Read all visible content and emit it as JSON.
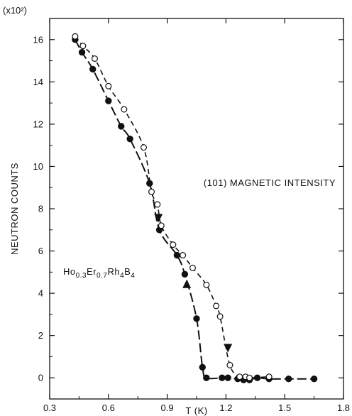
{
  "chart_data": {
    "type": "scatter",
    "xlabel": "T (K)",
    "ylabel": "NEUTRON COUNTS",
    "y_multiplier_label": "(x10²)",
    "xlim": [
      0.3,
      1.8
    ],
    "ylim": [
      -1,
      17
    ],
    "x_ticks": [
      0.3,
      0.6,
      0.9,
      1.2,
      1.5,
      1.8
    ],
    "x_tick_labels": [
      "0.3",
      "0.6",
      "0.9",
      "1.2",
      "1.5",
      "1.8"
    ],
    "y_ticks": [
      0,
      2,
      4,
      6,
      8,
      10,
      12,
      14,
      16
    ],
    "y_tick_labels": [
      "0",
      "2",
      "4",
      "6",
      "8",
      "10",
      "12",
      "14",
      "16"
    ],
    "annotation": "(101) MAGNETIC INTENSITY",
    "compound": {
      "a": "Ho",
      "b": "0.3",
      "c": "Er",
      "d": "0.7",
      "e": "Rh",
      "f": "4",
      "g": "B",
      "h": "4"
    },
    "series": [
      {
        "marker": "filled",
        "line": "long-dash",
        "points": [
          [
            0.43,
            16.0
          ],
          [
            0.465,
            15.4
          ],
          [
            0.52,
            14.6
          ],
          [
            0.6,
            13.1
          ],
          [
            0.665,
            11.9
          ],
          [
            0.71,
            11.3
          ],
          [
            0.81,
            9.2
          ],
          [
            0.86,
            7.0
          ],
          [
            0.95,
            5.8
          ],
          [
            0.99,
            4.9
          ],
          [
            1.05,
            2.8
          ],
          [
            1.08,
            0.5
          ],
          [
            1.1,
            0.0
          ],
          [
            1.18,
            0.0
          ],
          [
            1.21,
            0.0
          ],
          [
            1.26,
            -0.05
          ],
          [
            1.29,
            -0.1
          ],
          [
            1.32,
            -0.1
          ],
          [
            1.36,
            0.0
          ],
          [
            1.42,
            -0.05
          ],
          [
            1.52,
            -0.05
          ],
          [
            1.65,
            -0.05
          ]
        ]
      },
      {
        "marker": "open",
        "line": "short-dash",
        "points": [
          [
            0.43,
            16.15
          ],
          [
            0.47,
            15.7
          ],
          [
            0.53,
            15.1
          ],
          [
            0.6,
            13.8
          ],
          [
            0.68,
            12.7
          ],
          [
            0.78,
            10.9
          ],
          [
            0.82,
            8.8
          ],
          [
            0.85,
            8.2
          ],
          [
            0.87,
            7.2
          ],
          [
            0.93,
            6.3
          ],
          [
            0.98,
            5.8
          ],
          [
            1.03,
            5.2
          ],
          [
            1.1,
            4.4
          ],
          [
            1.15,
            3.4
          ],
          [
            1.17,
            2.9
          ],
          [
            1.22,
            0.6
          ],
          [
            1.27,
            0.05
          ],
          [
            1.3,
            0.05
          ],
          [
            1.32,
            0.0
          ],
          [
            1.42,
            0.05
          ]
        ]
      }
    ]
  }
}
